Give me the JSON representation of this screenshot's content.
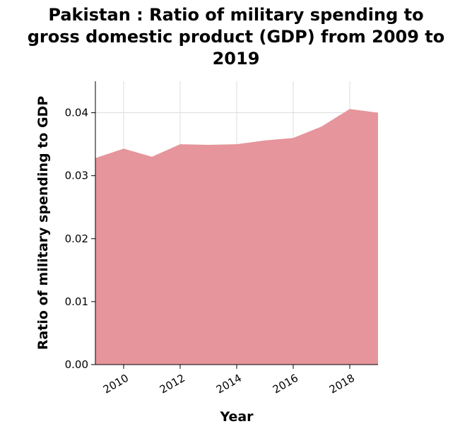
{
  "chart_data": {
    "type": "area",
    "title_lines": [
      "Pakistan : Ratio of military spending to",
      "gross domestic product (GDP) from 2009 to",
      "2019"
    ],
    "xlabel": "Year",
    "ylabel": "Ratio of military spending to GDP",
    "x": [
      2009,
      2010,
      2011,
      2012,
      2013,
      2014,
      2015,
      2016,
      2017,
      2018,
      2019
    ],
    "series": [
      {
        "values": [
          0.0328,
          0.0343,
          0.033,
          0.035,
          0.0349,
          0.035,
          0.0356,
          0.036,
          0.0378,
          0.0406,
          0.04
        ]
      }
    ],
    "xlim": [
      2009,
      2019
    ],
    "ylim": [
      0,
      0.045
    ],
    "xticks": [
      2010,
      2012,
      2014,
      2016,
      2018
    ],
    "yticks": [
      "0.00",
      "0.01",
      "0.02",
      "0.03",
      "0.04"
    ],
    "grid": true,
    "fill_color": "#e5959b",
    "grid_color": "#dddddd"
  }
}
